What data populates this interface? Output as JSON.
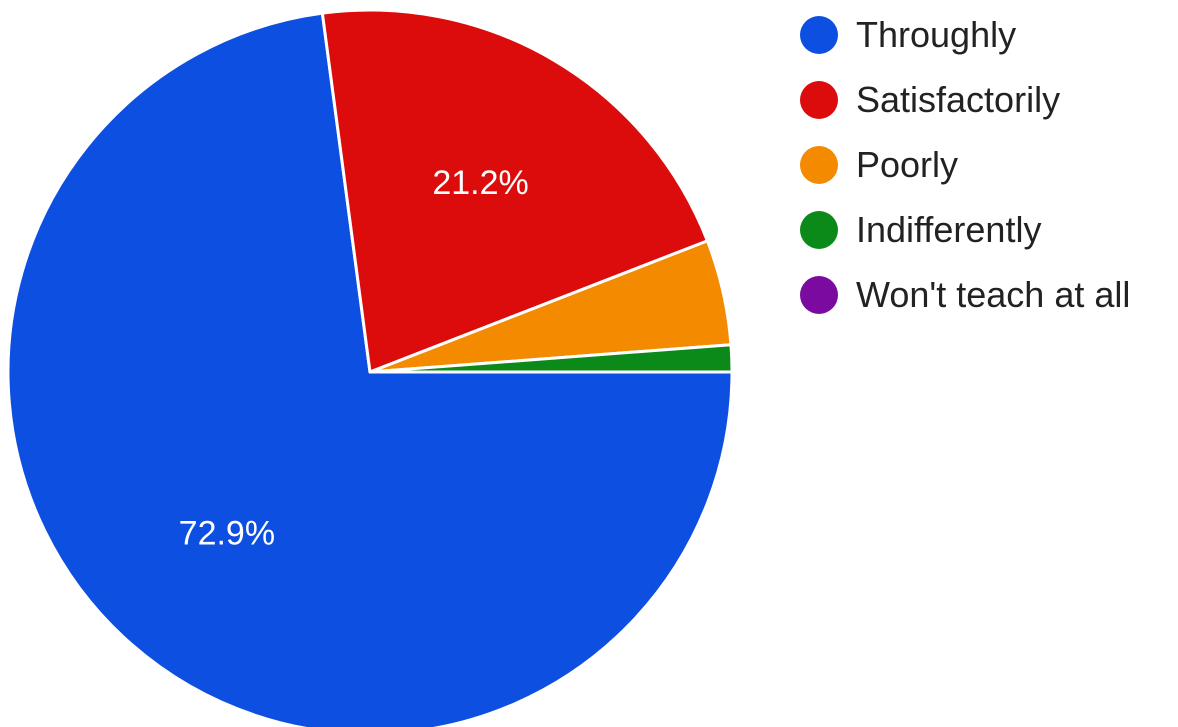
{
  "chart_data": {
    "type": "pie",
    "title": "",
    "categories": [
      "Throughly",
      "Satisfactorily",
      "Poorly",
      "Indifferently",
      "Won't teach at all"
    ],
    "values": [
      72.9,
      21.2,
      4.7,
      1.2,
      0.0
    ],
    "value_labels": [
      "72.9%",
      "21.2%",
      "",
      "",
      ""
    ],
    "colors": [
      "#0d4fe0",
      "#dc0c0c",
      "#f38a00",
      "#0b8a1a",
      "#7a0aa0"
    ],
    "start": "3 o'clock, clockwise",
    "legend_position": "right"
  }
}
